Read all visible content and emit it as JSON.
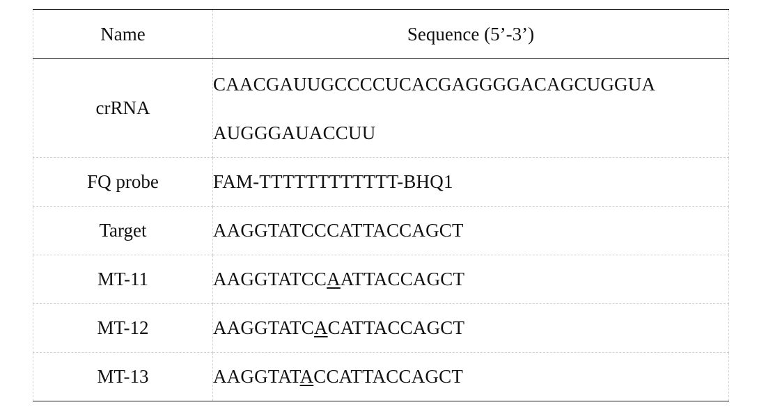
{
  "table": {
    "headers": {
      "name": "Name",
      "sequence": "Sequence (5’-3’)"
    },
    "rows": [
      {
        "name": "crRNA",
        "sequence_lines": [
          "CAACGAUUGCCCCUCACGAGGGGACAGCUGGUA",
          "AUGGGAUACCUU"
        ]
      },
      {
        "name": "FQ probe",
        "sequence": "FAM-TTTTTTTTTTTT-BHQ1"
      },
      {
        "name": "Target",
        "sequence": "AAGGTATCCCATTACCAGCT"
      },
      {
        "name": "MT-11",
        "sequence_parts": {
          "before": "AAGGTATCC",
          "mutation": "A",
          "after": "ATTACCAGCT"
        }
      },
      {
        "name": "MT-12",
        "sequence_parts": {
          "before": "AAGGTATC",
          "mutation": "A",
          "after": "CATTACCAGCT"
        }
      },
      {
        "name": "MT-13",
        "sequence_parts": {
          "before": "AAGGTAT",
          "mutation": "A",
          "after": "CCATTACCAGCT"
        }
      }
    ]
  }
}
